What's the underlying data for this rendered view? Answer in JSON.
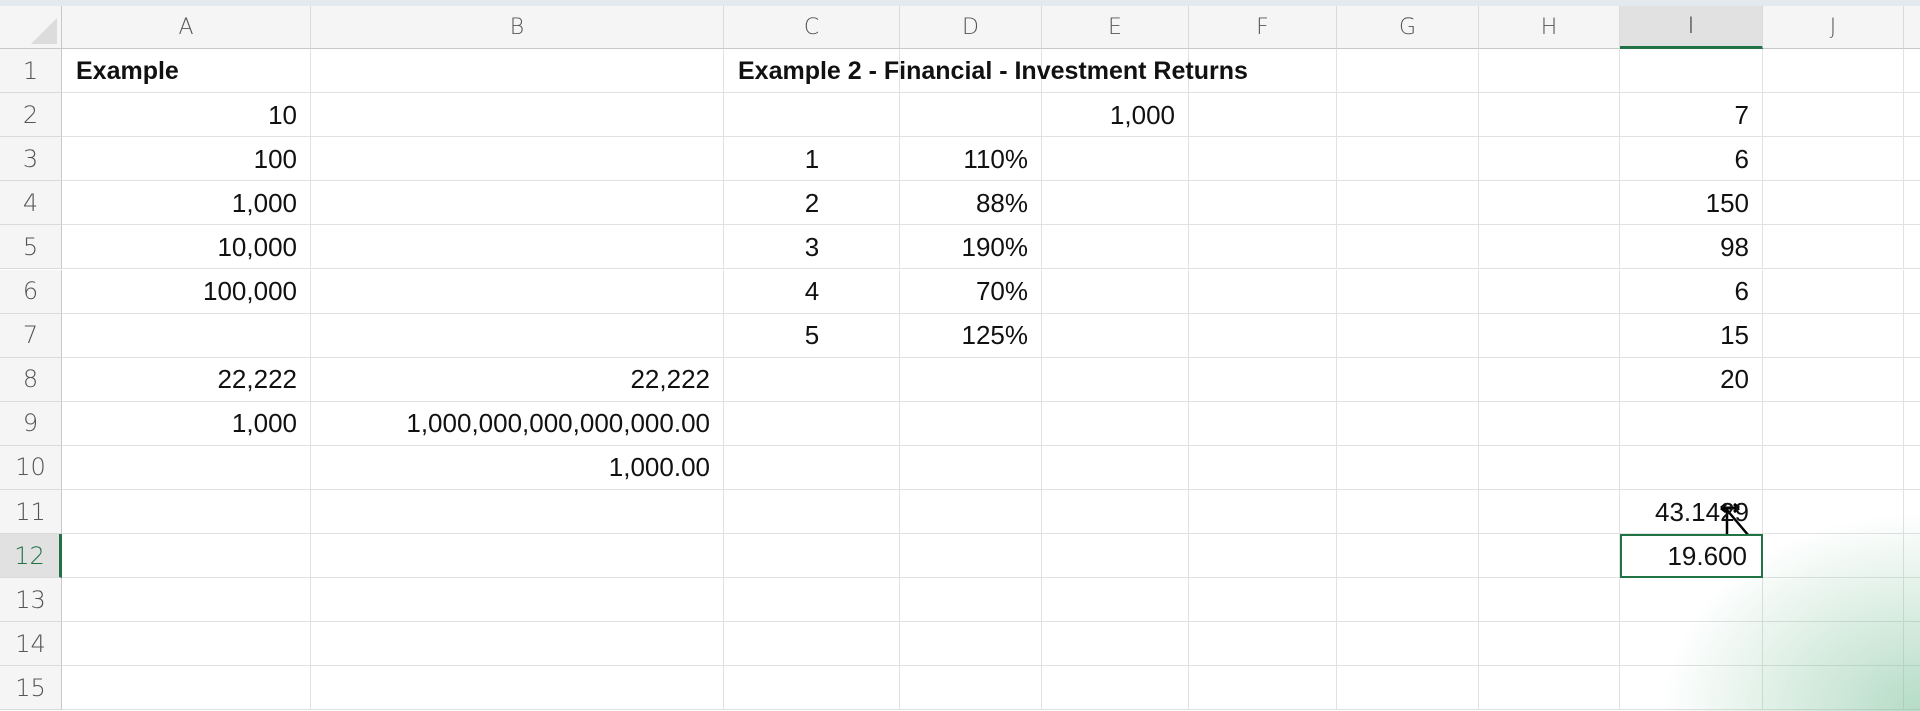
{
  "columns": [
    "A",
    "B",
    "C",
    "D",
    "E",
    "F",
    "G",
    "H",
    "I",
    "J"
  ],
  "rows": [
    "1",
    "2",
    "3",
    "4",
    "5",
    "6",
    "7",
    "8",
    "9",
    "10",
    "11",
    "12",
    "13",
    "14",
    "15"
  ],
  "selected_cell": {
    "column": "I",
    "row": "12"
  },
  "accent_color": "#217346",
  "cells": [
    {
      "col": "A",
      "row": "1",
      "value": "Example",
      "align": "left",
      "bold": true
    },
    {
      "col": "C",
      "row": "1",
      "value": "Example 2 - Financial - Investment Returns",
      "align": "left",
      "bold": true
    },
    {
      "col": "A",
      "row": "2",
      "value": "10"
    },
    {
      "col": "E",
      "row": "2",
      "value": "1,000"
    },
    {
      "col": "I",
      "row": "2",
      "value": "7"
    },
    {
      "col": "A",
      "row": "3",
      "value": "100"
    },
    {
      "col": "C",
      "row": "3",
      "value": "1",
      "align": "center"
    },
    {
      "col": "D",
      "row": "3",
      "value": "110%"
    },
    {
      "col": "I",
      "row": "3",
      "value": "6"
    },
    {
      "col": "A",
      "row": "4",
      "value": "1,000"
    },
    {
      "col": "C",
      "row": "4",
      "value": "2",
      "align": "center"
    },
    {
      "col": "D",
      "row": "4",
      "value": "88%"
    },
    {
      "col": "I",
      "row": "4",
      "value": "150"
    },
    {
      "col": "A",
      "row": "5",
      "value": "10,000"
    },
    {
      "col": "C",
      "row": "5",
      "value": "3",
      "align": "center"
    },
    {
      "col": "D",
      "row": "5",
      "value": "190%"
    },
    {
      "col": "I",
      "row": "5",
      "value": "98"
    },
    {
      "col": "A",
      "row": "6",
      "value": "100,000"
    },
    {
      "col": "C",
      "row": "6",
      "value": "4",
      "align": "center"
    },
    {
      "col": "D",
      "row": "6",
      "value": "70%"
    },
    {
      "col": "I",
      "row": "6",
      "value": "6"
    },
    {
      "col": "C",
      "row": "7",
      "value": "5",
      "align": "center"
    },
    {
      "col": "D",
      "row": "7",
      "value": "125%"
    },
    {
      "col": "I",
      "row": "7",
      "value": "15"
    },
    {
      "col": "A",
      "row": "8",
      "value": "22,222"
    },
    {
      "col": "B",
      "row": "8",
      "value": "22,222"
    },
    {
      "col": "I",
      "row": "8",
      "value": "20"
    },
    {
      "col": "A",
      "row": "9",
      "value": "1,000"
    },
    {
      "col": "B",
      "row": "9",
      "value": "1,000,000,000,000,000.00"
    },
    {
      "col": "B",
      "row": "10",
      "value": "1,000.00"
    },
    {
      "col": "I",
      "row": "11",
      "value": "43.1429"
    },
    {
      "col": "I",
      "row": "12",
      "value": "19.600"
    }
  ]
}
